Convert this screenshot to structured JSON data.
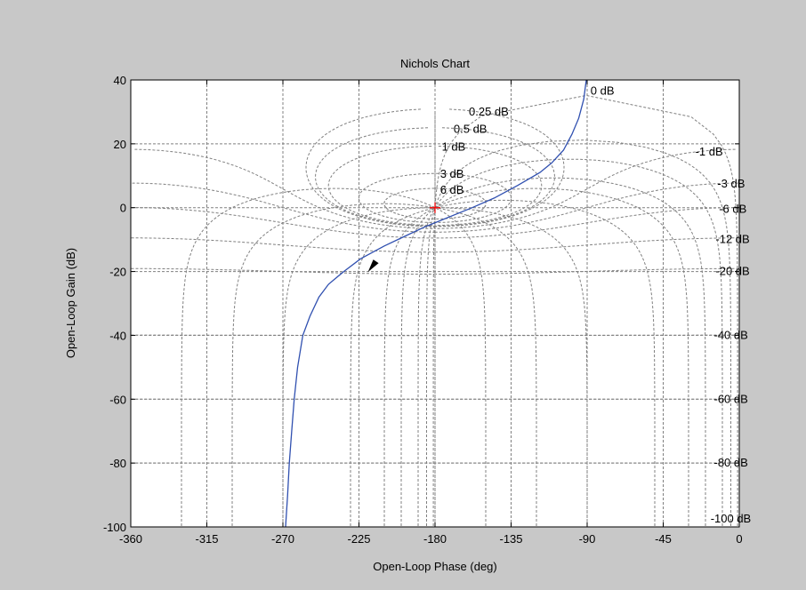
{
  "window": {
    "background": "#c8c8c8"
  },
  "chart_data": {
    "type": "line",
    "title": "Nichols Chart",
    "xlabel": "Open-Loop Phase (deg)",
    "ylabel": "Open-Loop Gain (dB)",
    "xlim": [
      -360,
      0
    ],
    "ylim": [
      -100,
      40
    ],
    "x_ticks": [
      -360,
      -315,
      -270,
      -225,
      -180,
      -135,
      -90,
      -45,
      0
    ],
    "y_ticks": [
      -100,
      -80,
      -60,
      -40,
      -20,
      0,
      20,
      40
    ],
    "grid": "dashed",
    "grid_color": "#808080",
    "m_circles_db": [
      0.25,
      0.5,
      1,
      3,
      6,
      -1,
      -3,
      -6,
      -12,
      -20,
      -40,
      -60,
      -80,
      -100
    ],
    "n_lines_deg": [
      -1,
      -5,
      -10,
      -20,
      -30,
      -50,
      -90,
      -120,
      -150,
      -180
    ],
    "grid_labels": [
      {
        "text": "0 dB",
        "phase": -88,
        "gain": 36.5
      },
      {
        "text": "0.25 dB",
        "phase": -160,
        "gain": 30
      },
      {
        "text": "0.5 dB",
        "phase": -169,
        "gain": 24.5
      },
      {
        "text": "1 dB",
        "phase": -176,
        "gain": 19
      },
      {
        "text": "3 dB",
        "phase": -177,
        "gain": 10.5
      },
      {
        "text": "6 dB",
        "phase": -177,
        "gain": 5.5
      },
      {
        "text": "-1 dB",
        "phase": -26,
        "gain": 17.5
      },
      {
        "text": "-3 dB",
        "phase": -13,
        "gain": 7.5
      },
      {
        "text": "-6 dB",
        "phase": -12,
        "gain": -0.5
      },
      {
        "text": "-12 dB",
        "phase": -14,
        "gain": -10
      },
      {
        "text": "-20 dB",
        "phase": -14,
        "gain": -20
      },
      {
        "text": "-40 dB",
        "phase": -15,
        "gain": -40
      },
      {
        "text": "-60 dB",
        "phase": -15,
        "gain": -60
      },
      {
        "text": "-80 dB",
        "phase": -15,
        "gain": -80
      },
      {
        "text": "-100 dB",
        "phase": -17,
        "gain": -97.5
      }
    ],
    "series": [
      {
        "color": "#3050b0",
        "x": [
          -268.4,
          -267.2,
          -266.2,
          -264.8,
          -263.3,
          -261.3,
          -258.2,
          -254.0,
          -248.7,
          -243.0,
          -234.0,
          -224.0,
          -210.0,
          -198.0,
          -186.0,
          -172.0,
          -158.0,
          -145.0,
          -131.0,
          -118.0,
          -111.0,
          -104.0,
          -99.0,
          -95.0,
          -92.0,
          -90.5
        ],
        "y": [
          -100,
          -90,
          -80,
          -70,
          -60,
          -50,
          -40,
          -34,
          -28,
          -24,
          -20,
          -16,
          -12,
          -9,
          -6,
          -3,
          0,
          3,
          7,
          11,
          14,
          18,
          23,
          28,
          34,
          40
        ]
      }
    ],
    "critical_point": {
      "phase": -180,
      "gain": 0,
      "marker": "+",
      "color": "#ff0000"
    },
    "direction_arrow": {
      "phase": -216,
      "gain": -18.5,
      "color": "#000000"
    }
  }
}
